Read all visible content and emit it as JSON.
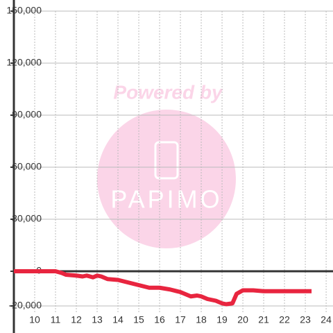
{
  "chart_data": {
    "type": "line",
    "watermark": {
      "line1": "Powered by",
      "line2": "PAPIMO"
    },
    "x": [
      9,
      11,
      11.3,
      11.5,
      12,
      12.3,
      12.5,
      12.8,
      13,
      13.2,
      13.5,
      14,
      14.5,
      15,
      15.5,
      16,
      16.5,
      17,
      17.5,
      17.8,
      18,
      18.3,
      18.7,
      19,
      19.2,
      19.5,
      19.7,
      20,
      20.5,
      21,
      22,
      23.3
    ],
    "series": [
      {
        "color": "#e8253f",
        "values": [
          0,
          0,
          -1000,
          -2000,
          -2500,
          -3000,
          -2500,
          -3500,
          -2500,
          -3000,
          -4500,
          -5000,
          -6500,
          -8000,
          -9500,
          -9500,
          -10500,
          -12000,
          -14500,
          -14000,
          -14500,
          -16000,
          -17000,
          -18500,
          -19000,
          -18500,
          -13000,
          -11000,
          -11000,
          -11500,
          -11500,
          -11500
        ]
      }
    ],
    "xlim": [
      9,
      24.33
    ],
    "xticks": [
      10,
      11,
      12,
      13,
      14,
      15,
      16,
      17,
      18,
      19,
      20,
      21,
      22,
      23,
      24
    ],
    "ylim": [
      -20000,
      150000
    ],
    "yticks": [
      {
        "value": -20000,
        "label": "-20,000"
      },
      0,
      {
        "value": 30000,
        "label": "30,000"
      },
      {
        "value": 60000,
        "label": "60,000"
      },
      {
        "value": 90000,
        "label": "90,000"
      },
      {
        "value": 120000,
        "label": "120,000"
      },
      {
        "value": 150000,
        "label": "150,000"
      }
    ],
    "grid": true
  }
}
